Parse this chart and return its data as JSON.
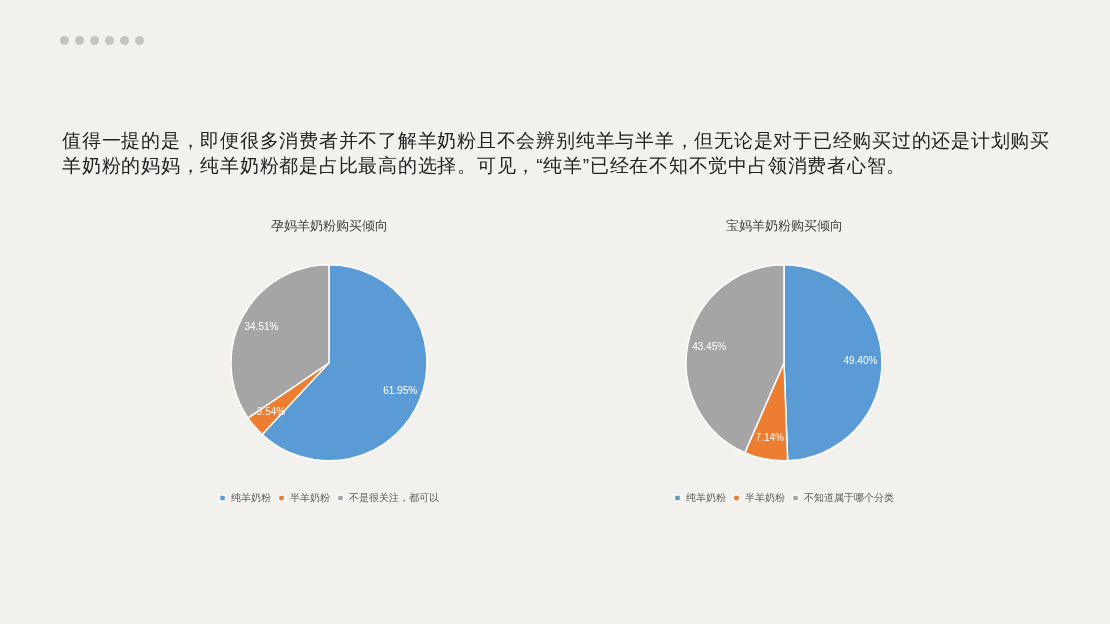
{
  "chart_data": [
    {
      "type": "other",
      "annotations": [
        "值得一提的是，即便很多消费者并不了解羊奶粉且不会辨别纯羊与半羊，但无论是对于已经购买过的还是计划购买羊奶粉的妈妈，纯羊奶粉都是占比最高的选择。可见，“纯羊”已经在不知不觉中占领消费者心智。"
      ]
    },
    {
      "type": "pie",
      "title": "孕妈羊奶粉购买倾向",
      "categories": [
        "纯羊奶粉",
        "半羊奶粉",
        "不是很关注，都可以"
      ],
      "values": [
        61.95,
        3.54,
        34.51
      ],
      "value_labels": [
        "61.95%",
        "3.54%",
        "34.51%"
      ],
      "colors": [
        "#5b9bd5",
        "#ed7d31",
        "#a5a5a5"
      ],
      "legend": "bottom"
    },
    {
      "type": "pie",
      "title": "宝妈羊奶粉购买倾向",
      "categories": [
        "纯羊奶粉",
        "半羊奶粉",
        "不知道属于哪个分类"
      ],
      "values": [
        49.4,
        7.14,
        43.45
      ],
      "value_labels": [
        "49.40%",
        "7.14%",
        "43.45%"
      ],
      "colors": [
        "#5b9bd5",
        "#ed7d31",
        "#a5a5a5"
      ],
      "legend": "bottom"
    }
  ]
}
